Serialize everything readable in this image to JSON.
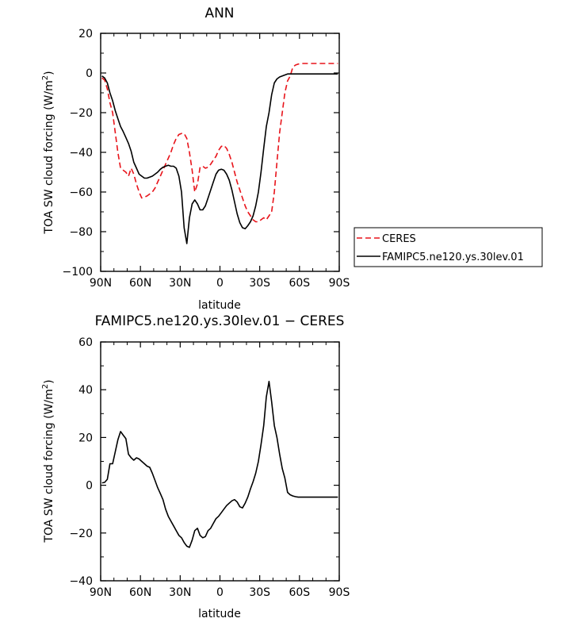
{
  "chart_data": [
    {
      "type": "line",
      "title": "ANN",
      "xlabel": "latitude",
      "ylabel_main": "TOA SW cloud forcing (W/m",
      "ylabel_sup": "2",
      "ylabel_tail": ")",
      "xlim": [
        90,
        -90
      ],
      "ylim": [
        -100,
        20
      ],
      "xticks": [
        {
          "value": 90,
          "label": "90N"
        },
        {
          "value": 60,
          "label": "60N"
        },
        {
          "value": 30,
          "label": "30N"
        },
        {
          "value": 0,
          "label": "0"
        },
        {
          "value": -30,
          "label": "30S"
        },
        {
          "value": -60,
          "label": "60S"
        },
        {
          "value": -90,
          "label": "90S"
        }
      ],
      "yticks": [
        {
          "value": 20,
          "label": "20"
        },
        {
          "value": 0,
          "label": "0"
        },
        {
          "value": -20,
          "label": "−20"
        },
        {
          "value": -40,
          "label": "−40"
        },
        {
          "value": -60,
          "label": "−60"
        },
        {
          "value": -80,
          "label": "−80"
        },
        {
          "value": -100,
          "label": "−100"
        }
      ],
      "legend_position": "right",
      "series": [
        {
          "name": "CERES",
          "color": "#e8141b",
          "dash": true,
          "x": [
            89,
            87,
            85,
            83,
            81,
            79,
            77,
            75,
            73,
            71,
            69,
            67,
            65,
            63,
            61,
            59,
            57,
            55,
            53,
            51,
            49,
            47,
            45,
            43,
            41,
            39,
            37,
            35,
            33,
            31,
            29,
            27,
            25,
            23,
            21,
            19,
            17,
            15,
            13,
            11,
            9,
            7,
            5,
            3,
            1,
            -1,
            -3,
            -5,
            -7,
            -9,
            -11,
            -13,
            -15,
            -17,
            -19,
            -21,
            -23,
            -25,
            -27,
            -29,
            -31,
            -33,
            -35,
            -37,
            -39,
            -41,
            -43,
            -45,
            -47,
            -49,
            -51,
            -53,
            -55,
            -57,
            -59,
            -61,
            -63,
            -65,
            -67,
            -69,
            -71,
            -73,
            -75,
            -77,
            -79,
            -81,
            -83,
            -85,
            -87,
            -89
          ],
          "y": [
            -2.5,
            -3.5,
            -8,
            -15,
            -20,
            -30,
            -40,
            -48,
            -49,
            -50,
            -52,
            -48,
            -51,
            -56,
            -60,
            -63,
            -62.5,
            -62,
            -61,
            -60,
            -58,
            -55,
            -52,
            -49,
            -46,
            -43,
            -40,
            -36,
            -33,
            -31,
            -30.5,
            -30.5,
            -33,
            -40,
            -49,
            -60,
            -56,
            -47.5,
            -47,
            -48,
            -47.5,
            -46,
            -44,
            -42,
            -39,
            -37,
            -36.5,
            -38,
            -41,
            -45,
            -50,
            -55,
            -59,
            -63,
            -67,
            -70,
            -72,
            -74,
            -75,
            -75,
            -74,
            -73,
            -74,
            -72,
            -70,
            -60,
            -45,
            -30,
            -20,
            -10,
            -4,
            -1.5,
            3,
            4,
            4.5,
            4.8,
            4.8,
            4.8,
            4.8,
            4.8,
            4.8,
            4.8,
            4.8,
            4.8,
            4.8,
            4.8,
            4.8,
            4.8,
            4.8,
            4.8
          ]
        },
        {
          "name": "FAMIPC5.ne120.ys.30lev.01",
          "color": "#000000",
          "dash": false,
          "x": [
            89,
            87,
            85,
            83,
            81,
            79,
            77,
            75,
            73,
            71,
            69,
            67,
            65,
            63,
            61,
            59,
            57,
            55,
            53,
            51,
            49,
            47,
            45,
            43,
            41,
            39,
            37,
            35,
            33,
            31,
            29,
            27,
            25,
            23,
            21,
            19,
            17,
            15,
            13,
            11,
            9,
            7,
            5,
            3,
            1,
            -1,
            -3,
            -5,
            -7,
            -9,
            -11,
            -13,
            -15,
            -17,
            -19,
            -21,
            -23,
            -25,
            -27,
            -29,
            -31,
            -33,
            -35,
            -37,
            -39,
            -41,
            -43,
            -45,
            -47,
            -49,
            -51,
            -53,
            -55,
            -57,
            -59,
            -61,
            -63,
            -65,
            -67,
            -69,
            -71,
            -73,
            -75,
            -77,
            -79,
            -81,
            -83,
            -85,
            -87,
            -89
          ],
          "y": [
            -1.5,
            -2.5,
            -5,
            -10,
            -14,
            -19,
            -23,
            -27,
            -29.5,
            -32.5,
            -35.5,
            -39.5,
            -45,
            -48,
            -51,
            -52,
            -53,
            -53,
            -52.5,
            -52,
            -51,
            -50,
            -48.5,
            -47.5,
            -47,
            -46.5,
            -47,
            -47,
            -48,
            -52,
            -60,
            -78,
            -86,
            -73,
            -66,
            -64,
            -66,
            -69,
            -69,
            -67,
            -63,
            -59,
            -55,
            -51,
            -49,
            -48.5,
            -49,
            -51,
            -54,
            -59,
            -65,
            -71,
            -75.5,
            -78,
            -78.5,
            -77,
            -75,
            -72,
            -67,
            -60,
            -50,
            -38,
            -27,
            -20,
            -11,
            -5,
            -3,
            -2,
            -1.5,
            -1,
            -0.5,
            -0.5,
            -0.5,
            -0.5,
            -0.5,
            -0.5,
            -0.5,
            -0.5,
            -0.5,
            -0.5,
            -0.5,
            -0.5,
            -0.5,
            -0.5,
            -0.5,
            -0.5,
            -0.5,
            -0.5,
            -0.5,
            -0.5
          ]
        }
      ]
    },
    {
      "type": "line",
      "title": "FAMIPC5.ne120.ys.30lev.01 − CERES",
      "xlabel": "latitude",
      "ylabel_main": "TOA SW cloud forcing (W/m",
      "ylabel_sup": "2",
      "ylabel_tail": ")",
      "xlim": [
        90,
        -90
      ],
      "ylim": [
        -40,
        60
      ],
      "xticks": [
        {
          "value": 90,
          "label": "90N"
        },
        {
          "value": 60,
          "label": "60N"
        },
        {
          "value": 30,
          "label": "30N"
        },
        {
          "value": 0,
          "label": "0"
        },
        {
          "value": -30,
          "label": "30S"
        },
        {
          "value": -60,
          "label": "60S"
        },
        {
          "value": -90,
          "label": "90S"
        }
      ],
      "yticks": [
        {
          "value": 60,
          "label": "60"
        },
        {
          "value": 40,
          "label": "40"
        },
        {
          "value": 20,
          "label": "20"
        },
        {
          "value": 0,
          "label": "0"
        },
        {
          "value": -20,
          "label": "−20"
        },
        {
          "value": -40,
          "label": "−40"
        }
      ],
      "series": [
        {
          "color": "#000000",
          "dash": false,
          "x": [
            89,
            87,
            85,
            83,
            81,
            79,
            77,
            75,
            73,
            71,
            69,
            67,
            65,
            63,
            61,
            59,
            57,
            55,
            53,
            51,
            49,
            47,
            45,
            43,
            41,
            39,
            37,
            35,
            33,
            31,
            29,
            27,
            25,
            23,
            21,
            19,
            17,
            15,
            13,
            11,
            9,
            7,
            5,
            3,
            1,
            -1,
            -3,
            -5,
            -7,
            -9,
            -11,
            -13,
            -15,
            -17,
            -19,
            -21,
            -23,
            -25,
            -27,
            -29,
            -31,
            -33,
            -35,
            -37,
            -39,
            -41,
            -43,
            -45,
            -47,
            -49,
            -51,
            -53,
            -55,
            -57,
            -59,
            -61,
            -63,
            -65,
            -67,
            -69,
            -71,
            -73,
            -75,
            -77,
            -79,
            -81,
            -83,
            -85,
            -87,
            -89
          ],
          "y": [
            1,
            1.2,
            2.5,
            9,
            9,
            14,
            19,
            22.5,
            21,
            19.5,
            13,
            11.5,
            10.5,
            11.5,
            11,
            10,
            9,
            8,
            7.5,
            5,
            2,
            -1,
            -3.5,
            -6,
            -10,
            -13,
            -15,
            -17,
            -19,
            -21,
            -22,
            -24,
            -25.5,
            -26,
            -23,
            -19,
            -18,
            -21,
            -22,
            -21.5,
            -19,
            -18,
            -16,
            -14,
            -13,
            -11.5,
            -10,
            -8.5,
            -7.5,
            -6.5,
            -6,
            -7,
            -9,
            -9.5,
            -7.5,
            -5,
            -1.5,
            1.5,
            5,
            10,
            17,
            25,
            37,
            43.5,
            35,
            25,
            20,
            13,
            7,
            3,
            -3,
            -4,
            -4.5,
            -4.8,
            -5,
            -5,
            -5,
            -5,
            -5,
            -5,
            -5,
            -5,
            -5,
            -5,
            -5,
            -5,
            -5,
            -5,
            -5,
            -5
          ]
        }
      ]
    }
  ]
}
